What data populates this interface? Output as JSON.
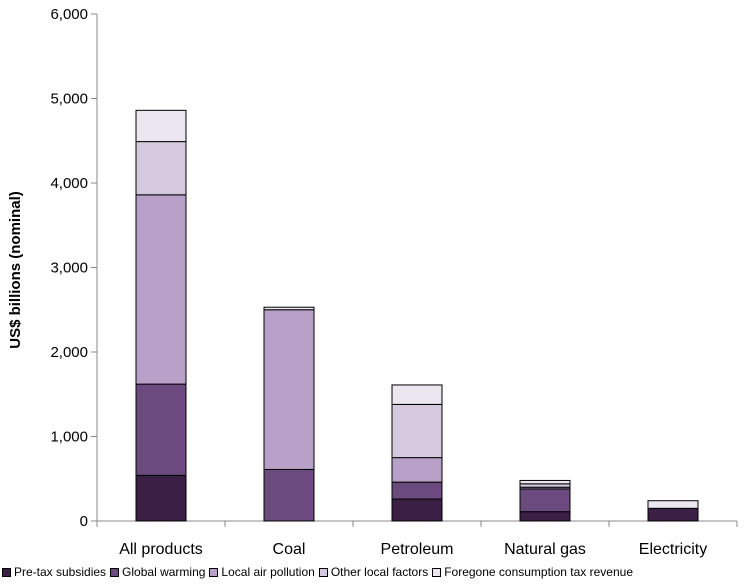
{
  "chart_data": {
    "type": "bar",
    "stacked": true,
    "categories": [
      "All products",
      "Coal",
      "Petroleum",
      "Natural gas",
      "Electricity"
    ],
    "ylabel": "US$ billions (nominal)",
    "ylim": [
      0,
      6000
    ],
    "yticks": [
      0,
      1000,
      2000,
      3000,
      4000,
      5000,
      6000
    ],
    "ytick_labels": [
      "0",
      "1,000",
      "2,000",
      "3,000",
      "4,000",
      "5,000",
      "6,000"
    ],
    "legend_position": "bottom",
    "grid": false,
    "series": [
      {
        "name": "Pre-tax subsidies",
        "color": "#3b1f45",
        "values": [
          540,
          0,
          260,
          110,
          150
        ]
      },
      {
        "name": "Global warming",
        "color": "#6b4b7f",
        "values": [
          1080,
          610,
          200,
          270,
          0
        ]
      },
      {
        "name": "Local air pollution",
        "color": "#b9a0c9",
        "values": [
          2240,
          1890,
          290,
          20,
          0
        ]
      },
      {
        "name": "Other local factors",
        "color": "#d5c9df",
        "values": [
          630,
          0,
          630,
          40,
          0
        ]
      },
      {
        "name": "Foregone consumption tax revenue",
        "color": "#ece6f1",
        "values": [
          370,
          30,
          230,
          40,
          90
        ]
      }
    ]
  }
}
